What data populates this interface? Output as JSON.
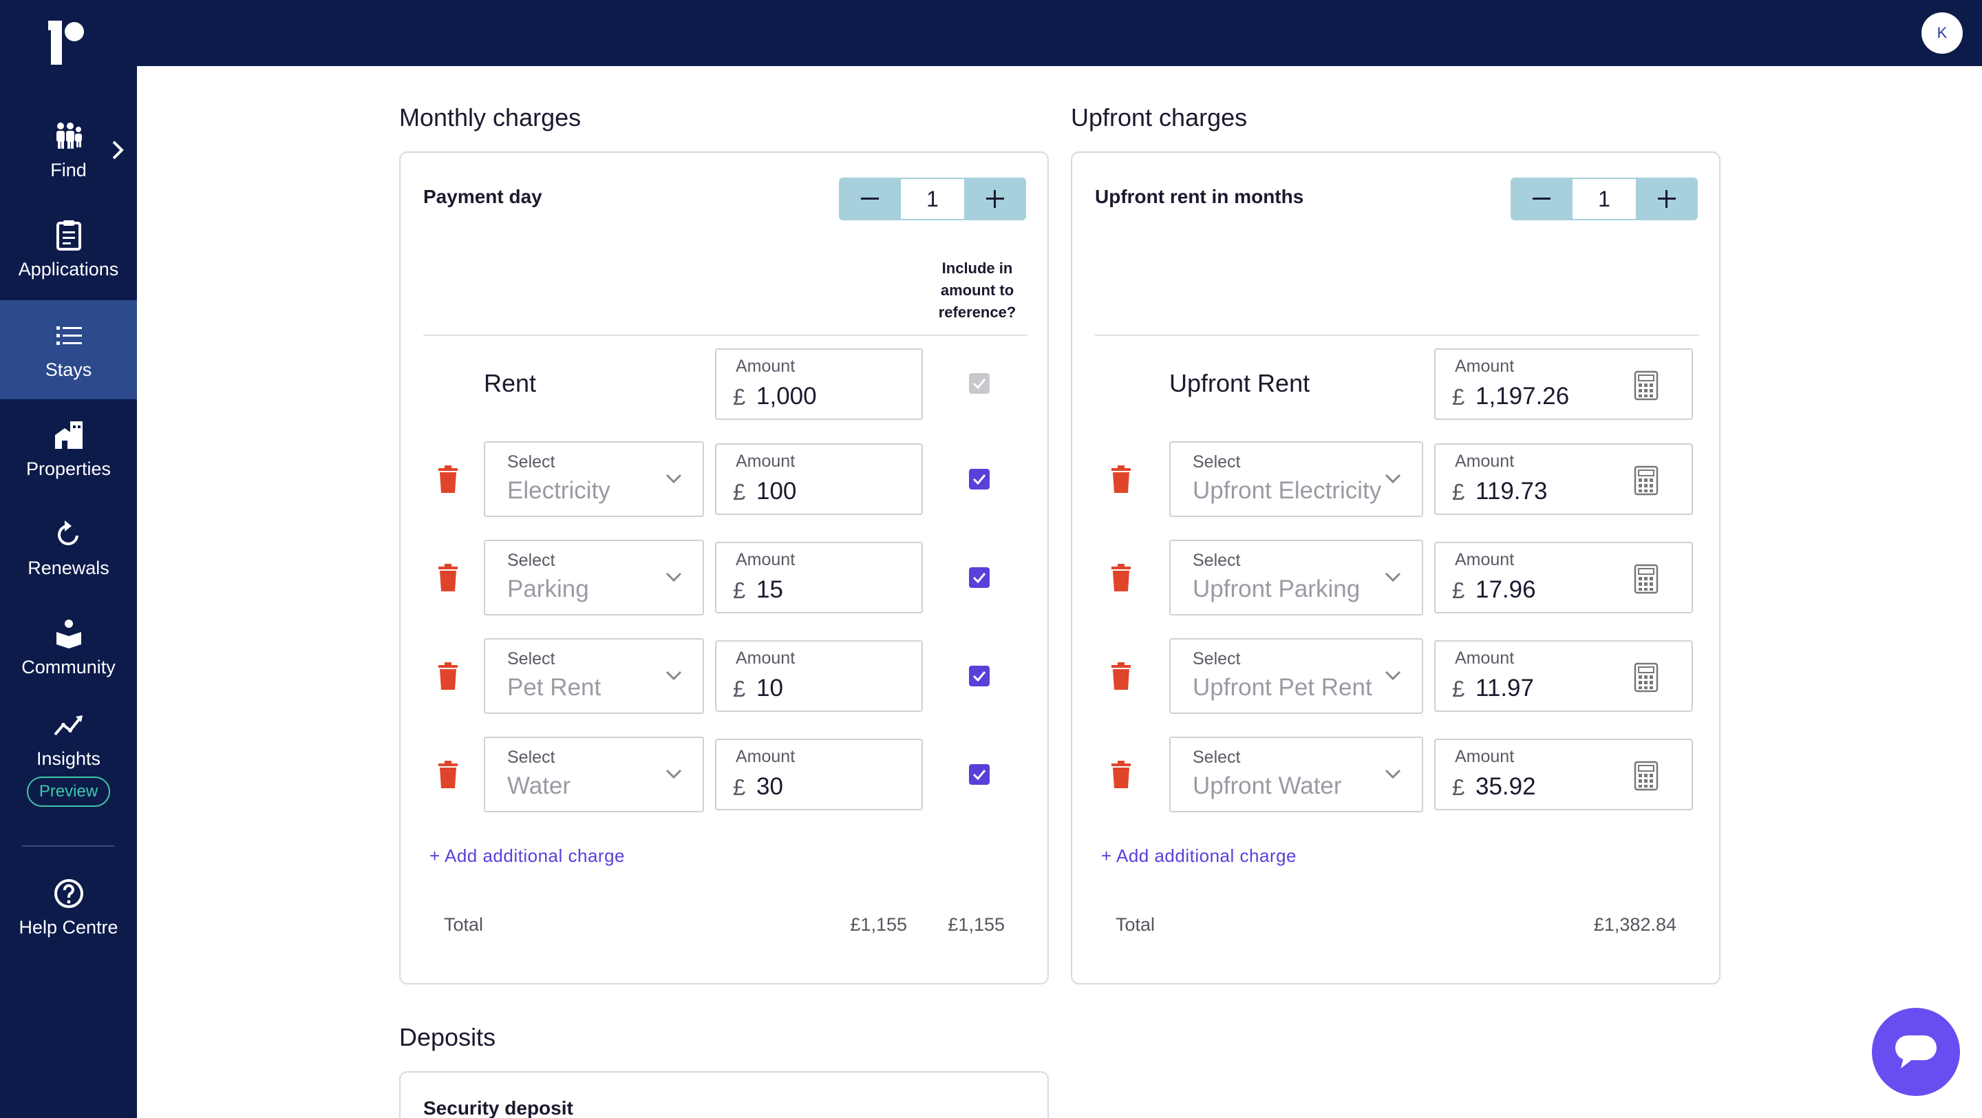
{
  "header": {
    "avatar_initial": "K"
  },
  "sidebar": {
    "items": [
      {
        "label": "Find",
        "icon": "people-icon"
      },
      {
        "label": "Applications",
        "icon": "clipboard-icon"
      },
      {
        "label": "Stays",
        "icon": "list-icon",
        "active": true
      },
      {
        "label": "Properties",
        "icon": "buildings-icon"
      },
      {
        "label": "Renewals",
        "icon": "refresh-icon"
      },
      {
        "label": "Community",
        "icon": "community-icon"
      },
      {
        "label": "Insights",
        "icon": "insights-icon",
        "badge": "Preview"
      },
      {
        "label": "Help Centre",
        "icon": "help-icon"
      }
    ]
  },
  "monthly": {
    "title": "Monthly charges",
    "stepper_label": "Payment day",
    "stepper_value": "1",
    "include_header": [
      "Include in",
      "amount to",
      "reference?"
    ],
    "rent_label": "Rent",
    "amount_label": "Amount",
    "select_label": "Select",
    "currency": "£",
    "rent_amount": "1,000",
    "rows": [
      {
        "select": "Electricity",
        "amount": "100"
      },
      {
        "select": "Parking",
        "amount": "15"
      },
      {
        "select": "Pet Rent",
        "amount": "10"
      },
      {
        "select": "Water",
        "amount": "30"
      }
    ],
    "add_charge": "+ Add additional charge",
    "total_label": "Total",
    "total": "£1,155",
    "total_reference": "£1,155"
  },
  "upfront": {
    "title": "Upfront charges",
    "stepper_label": "Upfront rent in months",
    "stepper_value": "1",
    "rent_label": "Upfront Rent",
    "amount_label": "Amount",
    "select_label": "Select",
    "currency": "£",
    "rent_amount": "1,197.26",
    "rows": [
      {
        "select": "Upfront Electricity",
        "amount": "119.73"
      },
      {
        "select": "Upfront Parking",
        "amount": "17.96"
      },
      {
        "select": "Upfront Pet Rent",
        "amount": "11.97"
      },
      {
        "select": "Upfront Water",
        "amount": "35.92"
      }
    ],
    "add_charge": "+ Add additional charge",
    "total_label": "Total",
    "total": "£1,382.84"
  },
  "deposits": {
    "title": "Deposits",
    "card_label": "Security deposit"
  },
  "colors": {
    "navy": "#0d1b4b",
    "active_nav": "#2c4a8c",
    "accent": "#5b3fd9",
    "stepper": "#a5d0dc",
    "delete": "#e0452b",
    "preview": "#3ec9a7",
    "chat": "#6a4df0"
  }
}
